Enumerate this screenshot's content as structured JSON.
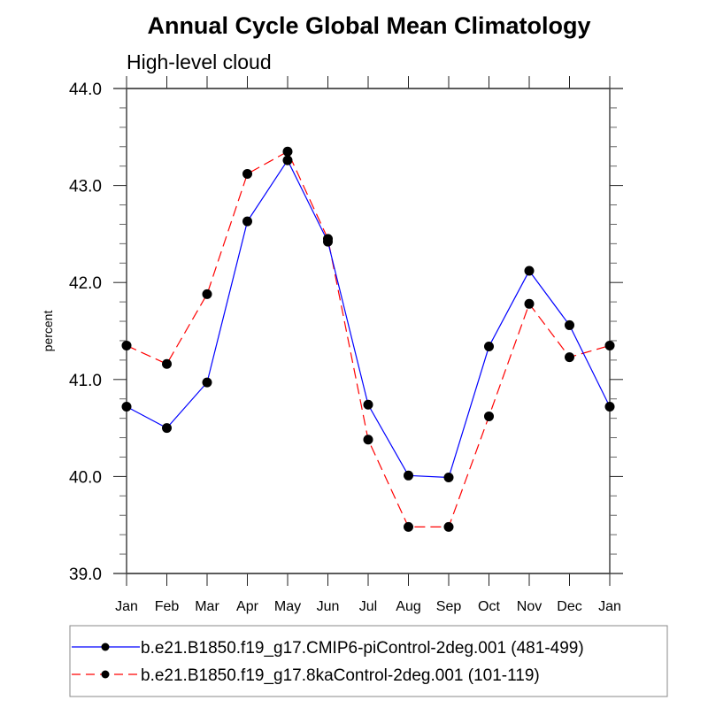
{
  "chart_data": {
    "type": "line",
    "title": "Annual Cycle Global Mean Climatology",
    "subtitle": "High-level cloud",
    "xlabel": "",
    "ylabel": "percent",
    "categories": [
      "Jan",
      "Feb",
      "Mar",
      "Apr",
      "May",
      "Jun",
      "Jul",
      "Aug",
      "Sep",
      "Oct",
      "Nov",
      "Dec",
      "Jan"
    ],
    "ylim": [
      39.0,
      44.0
    ],
    "yticks": [
      "39.0",
      "40.0",
      "41.0",
      "42.0",
      "43.0",
      "44.0"
    ],
    "y_minor_step": 0.2,
    "grid": false,
    "legend_position": "bottom",
    "series": [
      {
        "name": "b.e21.B1850.f19_g17.CMIP6-piControl-2deg.001 (481-499)",
        "color": "#0000ff",
        "dash": "solid",
        "marker": "filled-circle",
        "values": [
          40.72,
          40.5,
          40.97,
          42.63,
          43.26,
          42.42,
          40.74,
          40.01,
          39.99,
          41.34,
          42.12,
          41.56,
          40.72
        ]
      },
      {
        "name": "b.e21.B1850.f19_g17.8kaControl-2deg.001 (101-119)",
        "color": "#ff0000",
        "dash": "dashed",
        "marker": "filled-circle",
        "values": [
          41.35,
          41.16,
          41.88,
          43.12,
          43.35,
          42.45,
          40.38,
          39.48,
          39.48,
          40.62,
          41.78,
          41.23,
          41.35
        ]
      }
    ]
  }
}
